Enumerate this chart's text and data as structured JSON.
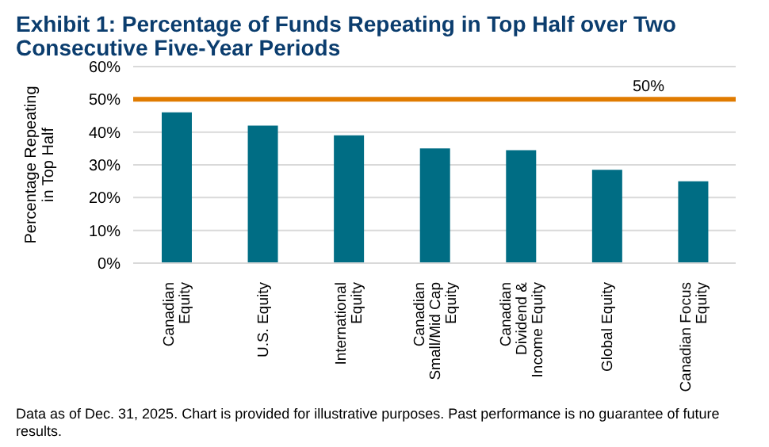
{
  "chart_data": {
    "type": "bar",
    "title": "Exhibit 1: Percentage of Funds Repeating in Top Half over Two Consecutive Five-Year Periods",
    "ylabel": "Percentage Repeating in Top Half",
    "categories": [
      "Canadian Equity",
      "U.S. Equity",
      "International Equity",
      "Canadian Small/Mid Cap Equity",
      "Canadian Dividend & Income Equity",
      "Global Equity",
      "Canadian Focus Equity"
    ],
    "values": [
      46,
      42,
      39,
      35,
      34.5,
      28.5,
      25
    ],
    "color": "#006d84",
    "ylim": [
      0,
      60
    ],
    "yticks": [
      {
        "value": 0,
        "label": "0%"
      },
      {
        "value": 10,
        "label": "10%"
      },
      {
        "value": 20,
        "label": "20%"
      },
      {
        "value": 30,
        "label": "30%"
      },
      {
        "value": 40,
        "label": "40%"
      },
      {
        "value": 50,
        "label": "50%"
      },
      {
        "value": 60,
        "label": "60%"
      }
    ],
    "grid": "y",
    "ref_lines": [
      {
        "axis": "y",
        "value": 50,
        "label": "50%",
        "color": "#e07b00"
      }
    ],
    "annotations": [
      "Data as of Dec. 31, 2025.  Chart is provided for illustrative purposes.  Past performance is no guarantee of future results."
    ]
  }
}
